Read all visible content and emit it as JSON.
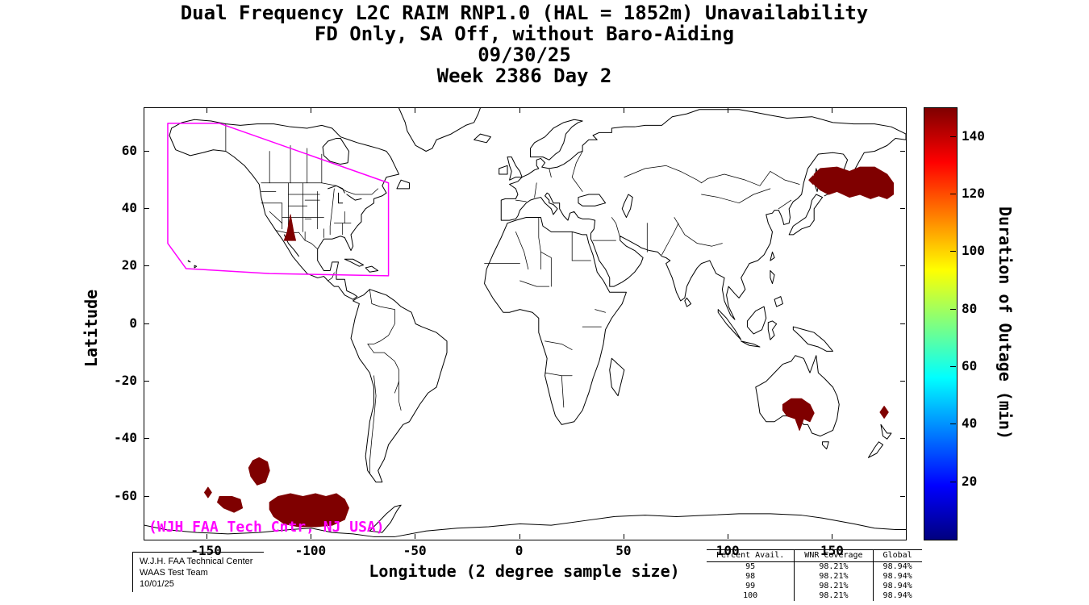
{
  "title": {
    "lines": [
      "Dual Frequency L2C RAIM RNP1.0 (HAL = 1852m) Unavailability",
      "FD Only, SA Off, without Baro-Aiding",
      "09/30/25",
      "Week 2386 Day 2"
    ]
  },
  "chart_data": {
    "type": "map",
    "xlabel": "Longitude (2 degree sample size)",
    "ylabel": "Latitude",
    "xlim": [
      -180,
      185
    ],
    "ylim": [
      -75,
      75
    ],
    "xticks": [
      -150,
      -100,
      -50,
      0,
      50,
      100,
      150
    ],
    "yticks": [
      60,
      40,
      20,
      0,
      -20,
      -40,
      -60
    ],
    "grid": false,
    "colorbar": {
      "label": "Duration of Outage (min)",
      "min": 0,
      "max": 150,
      "ticks": [
        20,
        40,
        60,
        80,
        100,
        120,
        140
      ],
      "colormap": "jet",
      "position": "right"
    },
    "annotation": {
      "text": "(WJH FAA Tech Cntr, NJ USA)",
      "color": "#ff00ff"
    },
    "waas_boundary": {
      "color": "#ff00ff",
      "points": [
        [
          -168.8,
          69.7
        ],
        [
          -144,
          69.7
        ],
        [
          -63,
          49
        ],
        [
          -63,
          16.7
        ],
        [
          -120,
          17.5
        ],
        [
          -150,
          18.8
        ],
        [
          -160,
          19.2
        ],
        [
          -168.8,
          28
        ],
        [
          -168.8,
          69.7
        ]
      ]
    },
    "outage_color": "#7f0000",
    "outage_regions": [
      {
        "name": "arizona",
        "duration_min": 150,
        "points": [
          [
            -113,
            29
          ],
          [
            -107.5,
            29
          ],
          [
            -108.5,
            32
          ],
          [
            -110,
            38
          ],
          [
            -111.5,
            32
          ],
          [
            -113,
            29
          ]
        ]
      },
      {
        "name": "northeast-asia-main",
        "duration_min": 150,
        "points": [
          [
            141,
            52
          ],
          [
            144,
            54
          ],
          [
            152,
            54.5
          ],
          [
            158,
            53
          ],
          [
            163,
            54.5
          ],
          [
            170,
            54.5
          ],
          [
            176,
            52
          ],
          [
            179,
            49
          ],
          [
            179,
            45
          ],
          [
            176,
            43.5
          ],
          [
            172,
            44.5
          ],
          [
            168,
            43.5
          ],
          [
            163,
            45
          ],
          [
            158,
            44
          ],
          [
            152,
            46
          ],
          [
            148,
            45
          ],
          [
            144,
            46.5
          ],
          [
            141,
            48.5
          ],
          [
            141,
            52
          ]
        ]
      },
      {
        "name": "northeast-asia-small",
        "duration_min": 150,
        "points": [
          [
            138.5,
            50
          ],
          [
            140.5,
            51.5
          ],
          [
            142.5,
            50
          ],
          [
            140.5,
            48.5
          ],
          [
            138.5,
            50
          ]
        ]
      },
      {
        "name": "south-australia",
        "duration_min": 150,
        "points": [
          [
            126,
            -28
          ],
          [
            130,
            -26
          ],
          [
            135,
            -26
          ],
          [
            139,
            -28
          ],
          [
            141,
            -31
          ],
          [
            139,
            -34
          ],
          [
            136,
            -33
          ],
          [
            134,
            -37
          ],
          [
            132,
            -33
          ],
          [
            128,
            -32
          ],
          [
            126,
            -30
          ],
          [
            126,
            -28
          ]
        ]
      },
      {
        "name": "east-of-new-zealand",
        "duration_min": 150,
        "points": [
          [
            174.6,
            -28.6
          ],
          [
            176.6,
            -30.7
          ],
          [
            174.6,
            -32.8
          ],
          [
            172.6,
            -30.7
          ],
          [
            174.6,
            -28.6
          ]
        ]
      },
      {
        "name": "south-pacific-large",
        "duration_min": 150,
        "points": [
          [
            -120,
            -62
          ],
          [
            -116,
            -60
          ],
          [
            -110,
            -59
          ],
          [
            -104,
            -60
          ],
          [
            -98,
            -59
          ],
          [
            -93,
            -60
          ],
          [
            -88,
            -59
          ],
          [
            -84,
            -61
          ],
          [
            -82,
            -64
          ],
          [
            -84,
            -68
          ],
          [
            -90,
            -70
          ],
          [
            -98,
            -70.5
          ],
          [
            -106,
            -70.5
          ],
          [
            -113,
            -69.5
          ],
          [
            -118,
            -67
          ],
          [
            -120,
            -64.5
          ],
          [
            -120,
            -62
          ]
        ]
      },
      {
        "name": "south-pacific-round",
        "duration_min": 150,
        "points": [
          [
            -125,
            -46.5
          ],
          [
            -121,
            -48
          ],
          [
            -120,
            -51
          ],
          [
            -122,
            -55
          ],
          [
            -126,
            -56
          ],
          [
            -129,
            -53
          ],
          [
            -130,
            -50
          ],
          [
            -128,
            -47.5
          ],
          [
            -125,
            -46.5
          ]
        ]
      },
      {
        "name": "south-pacific-small",
        "duration_min": 150,
        "points": [
          [
            -144,
            -60
          ],
          [
            -138,
            -60
          ],
          [
            -134,
            -61
          ],
          [
            -133,
            -64
          ],
          [
            -137,
            -65.5
          ],
          [
            -142,
            -64
          ],
          [
            -145,
            -62
          ],
          [
            -144,
            -60
          ]
        ]
      },
      {
        "name": "south-pacific-diamond",
        "duration_min": 150,
        "points": [
          [
            -149.5,
            -56.8
          ],
          [
            -147.8,
            -58.6
          ],
          [
            -149.5,
            -60.4
          ],
          [
            -151.2,
            -58.6
          ],
          [
            -149.5,
            -56.8
          ]
        ]
      }
    ]
  },
  "footer": {
    "credit_lines": [
      "W.J.H. FAA Technical Center",
      "WAAS Test Team",
      "10/01/25"
    ]
  },
  "availability_table": {
    "columns": [
      "Percent Avail.",
      "WNR Coverage",
      "Global"
    ],
    "rows": [
      [
        "95",
        "98.21%",
        "98.94%"
      ],
      [
        "98",
        "98.21%",
        "98.94%"
      ],
      [
        "99",
        "98.21%",
        "98.94%"
      ],
      [
        "100",
        "98.21%",
        "98.94%"
      ]
    ]
  }
}
